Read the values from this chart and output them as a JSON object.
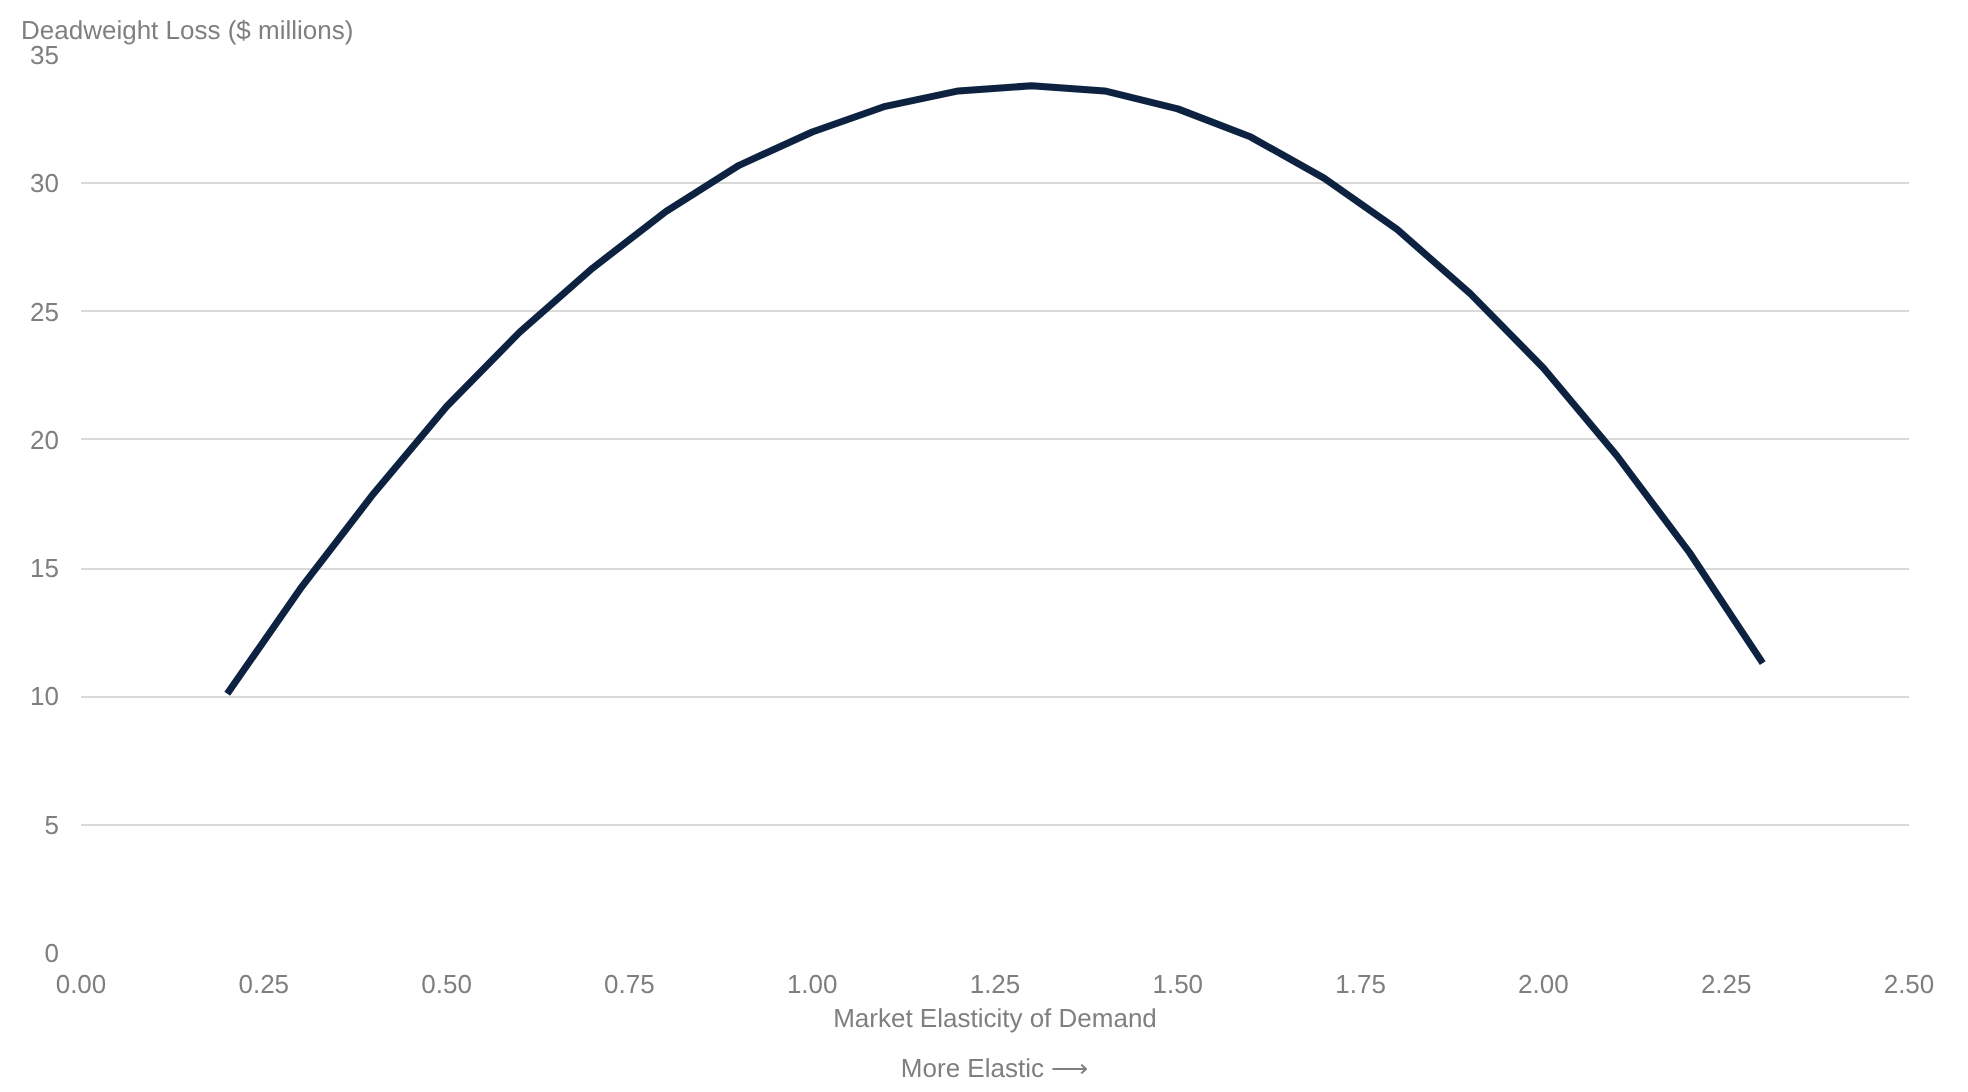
{
  "chart_data": {
    "type": "line",
    "ylabel": "Deadweight Loss ($ millions)",
    "xlabel": "Market Elasticity of Demand",
    "annotations": [
      "More Elastic ⟶"
    ],
    "x": [
      0.2,
      0.3,
      0.4,
      0.5,
      0.6,
      0.7,
      0.8,
      0.9,
      1.0,
      1.1,
      1.2,
      1.3,
      1.4,
      1.5,
      1.6,
      1.7,
      1.8,
      1.9,
      2.0,
      2.1,
      2.2,
      2.3
    ],
    "series": [
      {
        "color": "#0d2240",
        "values": [
          10.1,
          14.2,
          17.9,
          21.3,
          24.2,
          26.7,
          28.9,
          30.7,
          32.0,
          33.0,
          33.6,
          33.8,
          33.6,
          32.9,
          31.8,
          30.2,
          28.2,
          25.7,
          22.8,
          19.4,
          15.6,
          11.3
        ]
      }
    ],
    "xlim": [
      0,
      2.5
    ],
    "xticks": [
      {
        "value": 0,
        "label": "0.00"
      },
      {
        "value": 0.25,
        "label": "0.25"
      },
      {
        "value": 0.5,
        "label": "0.50"
      },
      {
        "value": 0.75,
        "label": "0.75"
      },
      {
        "value": 1,
        "label": "1.00"
      },
      {
        "value": 1.25,
        "label": "1.25"
      },
      {
        "value": 1.5,
        "label": "1.50"
      },
      {
        "value": 1.75,
        "label": "1.75"
      },
      {
        "value": 2,
        "label": "2.00"
      },
      {
        "value": 2.25,
        "label": "2.25"
      },
      {
        "value": 2.5,
        "label": "2.50"
      }
    ],
    "ylim": [
      0,
      35
    ],
    "yticks": [
      0,
      5,
      10,
      15,
      20,
      25,
      30,
      35
    ],
    "grid": "y",
    "marker": "none",
    "line_style": "solid"
  }
}
